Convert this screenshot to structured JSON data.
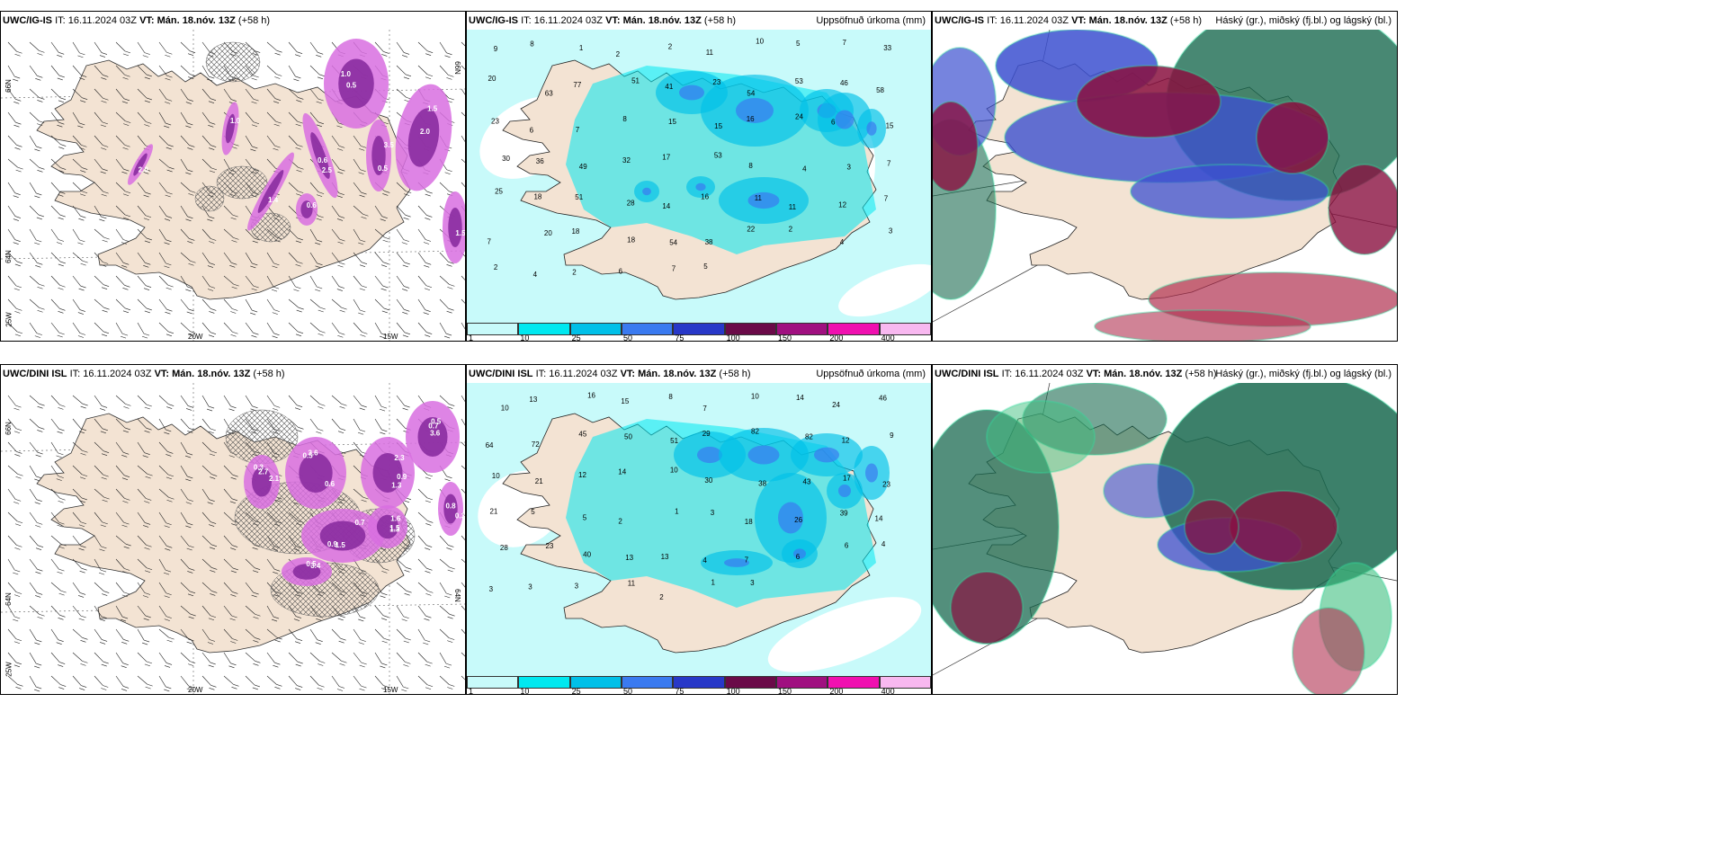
{
  "row1": {
    "model": "UWC/IG-IS",
    "it_label": "IT:",
    "it_value": "16.11.2024 03Z",
    "vt_label": "VT:",
    "vt_value": "Mán. 18.nóv. 13Z",
    "lead": "(+58 h)"
  },
  "row2": {
    "model": "UWC/DINI ISL",
    "it_label": "IT:",
    "it_value": "16.11.2024 03Z",
    "vt_label": "VT:",
    "vt_value": "Mán. 18.nóv. 13Z",
    "lead": "(+58 h)"
  },
  "precip_title": "Uppsöfnuð úrkoma (mm)",
  "cloud_title": "Háský (gr.), miðský (fj.bl.) og lágský (bl.)",
  "axis_labels": {
    "lat_66": "66N",
    "lat_64": "64N",
    "lon_20": "20W",
    "lon_15": "15W",
    "lon_25": "25W"
  },
  "legend": {
    "labels": [
      "1",
      "10",
      "25",
      "50",
      "75",
      "100",
      "150",
      "200",
      "400"
    ],
    "colors": [
      "#c8fafa",
      "#00e8f0",
      "#00c0e8",
      "#3a7af0",
      "#2838c8",
      "#6a0a48",
      "#a01080",
      "#f010b0",
      "#f8b8f0"
    ]
  },
  "colors": {
    "land": "#f3e3d3",
    "sea_precip": "#c8fafa",
    "precip_light": "#00e8f0",
    "precip_mid": "#00c0e8",
    "snow_purple": "#b030c0",
    "cloud_high": "#1a6a50",
    "cloud_mid": "#3c50d0",
    "cloud_low": "#8a1040"
  },
  "precip_values_top": [
    "9",
    "8",
    "1",
    "2",
    "2",
    "11",
    "10",
    "5",
    "7",
    "33",
    "20",
    "63",
    "77",
    "51",
    "41",
    "23",
    "54",
    "53",
    "46",
    "58",
    "23",
    "6",
    "7",
    "8",
    "15",
    "15",
    "16",
    "24",
    "6",
    "15",
    "30",
    "36",
    "49",
    "32",
    "17",
    "53",
    "8",
    "4",
    "3",
    "7",
    "25",
    "18",
    "51",
    "28",
    "14",
    "16",
    "11",
    "11",
    "12",
    "7",
    "7",
    "20",
    "18",
    "18",
    "54",
    "38",
    "22",
    "2",
    "4",
    "3",
    "2",
    "4",
    "2",
    "6",
    "7",
    "5"
  ],
  "precip_values_bottom": [
    "10",
    "13",
    "16",
    "15",
    "8",
    "7",
    "10",
    "14",
    "24",
    "46",
    "64",
    "72",
    "45",
    "50",
    "51",
    "29",
    "82",
    "82",
    "12",
    "9",
    "10",
    "21",
    "12",
    "14",
    "10",
    "30",
    "38",
    "43",
    "17",
    "23",
    "21",
    "5",
    "5",
    "2",
    "1",
    "3",
    "18",
    "26",
    "39",
    "14",
    "28",
    "23",
    "40",
    "13",
    "13",
    "4",
    "7",
    "6",
    "6",
    "4",
    "3",
    "3",
    "3",
    "11",
    "2",
    "1",
    "3"
  ],
  "snow_values_top": [
    "1.0",
    "2.0",
    "0.5",
    "0.6",
    "1.4",
    "0.6",
    "1.0",
    "2.0",
    "1.5",
    "0.5",
    "1.5",
    "3.5",
    "2.5"
  ],
  "snow_values_bottom": [
    "3.6",
    "2.3",
    "3.6",
    "2.1",
    "1.5",
    "1.3",
    "3.4",
    "0.8",
    "0.6",
    "0.9",
    "0.5",
    "2.7",
    "0.7",
    "1.6",
    "0.5",
    "0.3",
    "0.5",
    "1.3",
    "0.7",
    "0.3",
    "0.9",
    "1.5"
  ]
}
